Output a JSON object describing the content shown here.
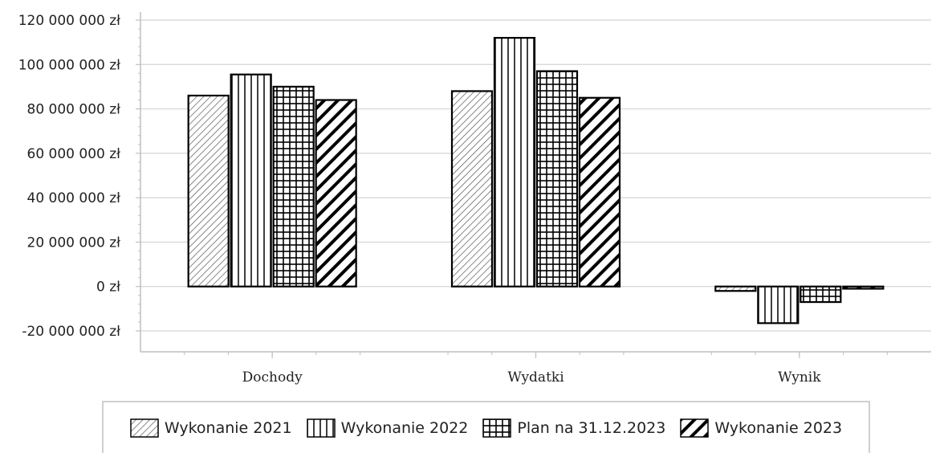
{
  "chart_data": {
    "type": "bar",
    "title": "",
    "xlabel": "",
    "ylabel": "",
    "categories": [
      "Dochody",
      "Wydatki",
      "Wynik"
    ],
    "series": [
      {
        "name": "Wykonanie 2021",
        "values": [
          86000000,
          88000000,
          -2000000
        ],
        "pattern": "fine-diagonal"
      },
      {
        "name": "Wykonanie 2022",
        "values": [
          95500000,
          112000000,
          -16500000
        ],
        "pattern": "vertical-stripes"
      },
      {
        "name": "Plan na 31.12.2023",
        "values": [
          90000000,
          97000000,
          -7000000
        ],
        "pattern": "grid"
      },
      {
        "name": "Wykonanie 2023",
        "values": [
          84000000,
          85000000,
          -1000000
        ],
        "pattern": "bold-diagonal"
      }
    ],
    "ylim": [
      -20000000,
      120000000
    ],
    "yticks": [
      -20000000,
      0,
      20000000,
      40000000,
      60000000,
      80000000,
      100000000,
      120000000
    ],
    "ytick_labels": [
      "-20 000 000 zł",
      "0 zł",
      "20 000 000 zł",
      "40 000 000 zł",
      "60 000 000 zł",
      "80 000 000 zł",
      "100 000 000 zł",
      "120 000 000 zł"
    ],
    "grid": true,
    "legend_position": "bottom",
    "colors": {
      "bar_fill": "#ffffff",
      "bar_stroke": "#000000",
      "gridline": "#d4d4d4",
      "axis": "#bfbfbf"
    }
  }
}
